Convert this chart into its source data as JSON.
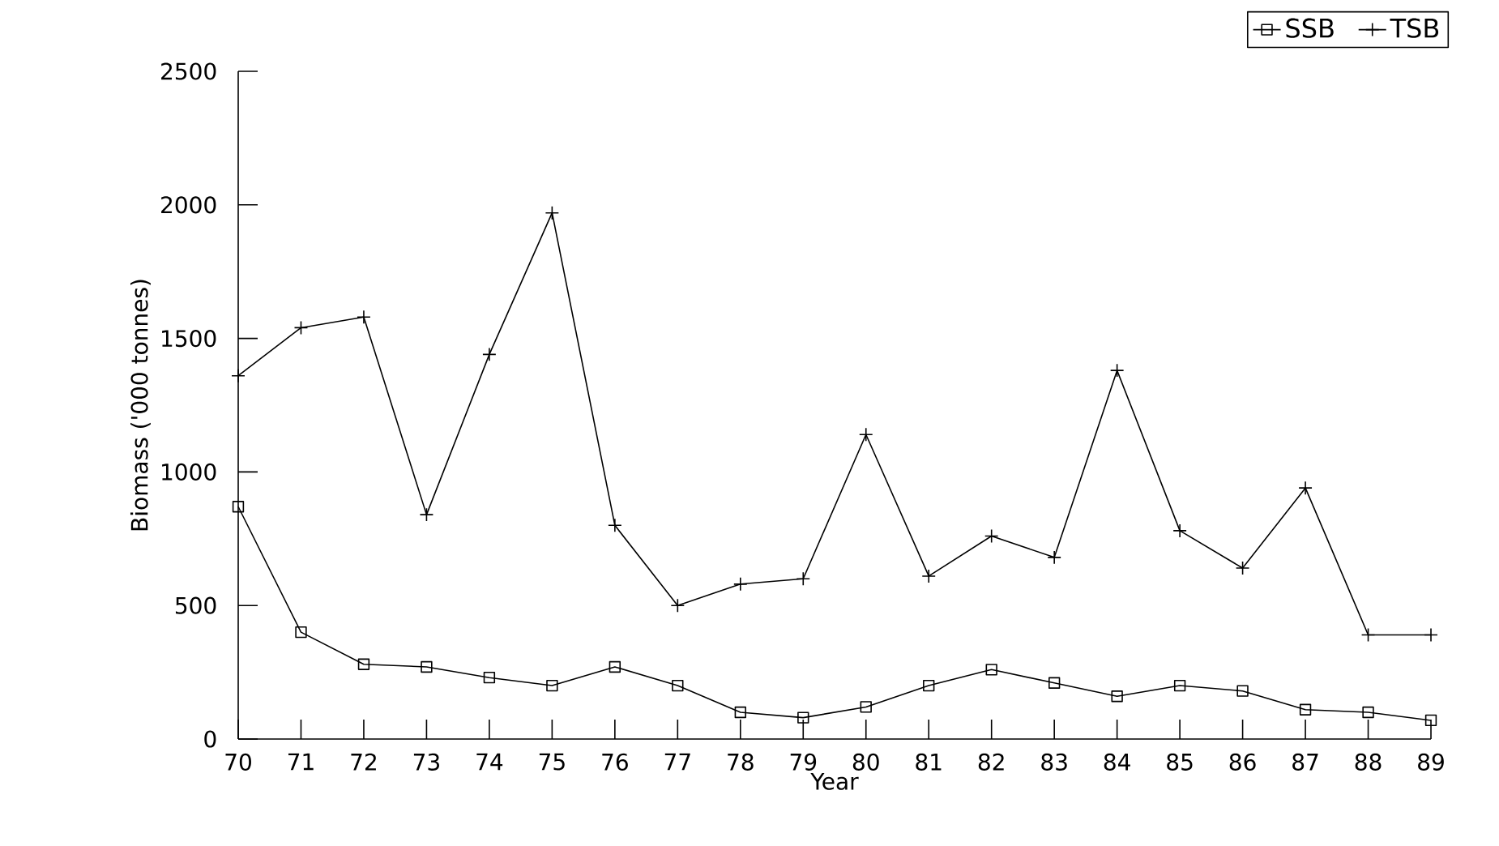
{
  "chart_data": {
    "type": "line",
    "xlabel": "Year",
    "ylabel": "Biomass ('000 tonnes)",
    "x": [
      70,
      71,
      72,
      73,
      74,
      75,
      76,
      77,
      78,
      79,
      80,
      81,
      82,
      83,
      84,
      85,
      86,
      87,
      88,
      89
    ],
    "series": [
      {
        "name": "SSB",
        "color": "#000000",
        "marker": "square",
        "values": [
          870,
          400,
          280,
          270,
          230,
          200,
          270,
          200,
          100,
          80,
          120,
          200,
          260,
          210,
          160,
          200,
          180,
          110,
          100,
          70
        ]
      },
      {
        "name": "TSB",
        "color": "#000000",
        "marker": "cross",
        "values": [
          1360,
          1540,
          1580,
          840,
          1440,
          1970,
          800,
          500,
          580,
          600,
          1140,
          610,
          760,
          680,
          1380,
          780,
          640,
          940,
          390,
          390
        ]
      }
    ],
    "xlim": [
      70,
      89
    ],
    "xticks": [
      70,
      71,
      72,
      73,
      74,
      75,
      76,
      77,
      78,
      79,
      80,
      81,
      82,
      83,
      84,
      85,
      86,
      87,
      88,
      89
    ],
    "ylim": [
      0,
      2500
    ],
    "yticks": [
      0,
      500,
      1000,
      1500,
      2000,
      2500
    ],
    "grid": false,
    "legend": "top right",
    "line_style": "solid"
  }
}
